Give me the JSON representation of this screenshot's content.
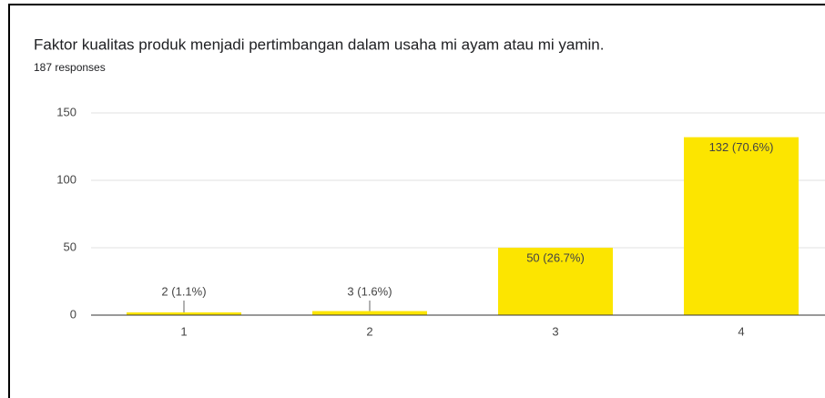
{
  "chart_data": {
    "type": "bar",
    "title": "Faktor kualitas produk menjadi pertimbangan dalam usaha mi ayam atau mi yamin.",
    "subtitle": "187 responses",
    "categories": [
      "1",
      "2",
      "3",
      "4"
    ],
    "values": [
      2,
      3,
      50,
      132
    ],
    "value_labels": [
      "2 (1.1%)",
      "3 (1.6%)",
      "50 (26.7%)",
      "132 (70.6%)"
    ],
    "color": "#fce500",
    "ylim": [
      0,
      150
    ],
    "yticks": [
      0,
      50,
      100,
      150
    ],
    "grid": true
  }
}
